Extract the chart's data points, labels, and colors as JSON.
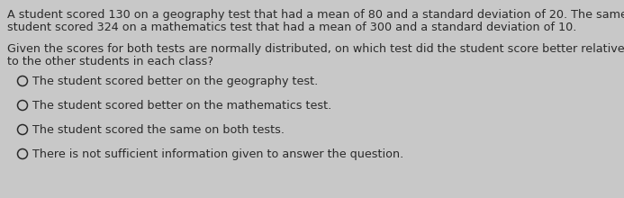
{
  "background_color": "#c8c8c8",
  "paragraph1_line1": "A student scored 130 on a geography test that had a mean of 80 and a standard deviation of 20. The same",
  "paragraph1_line2": "student scored 324 on a mathematics test that had a mean of 300 and a standard deviation of 10.",
  "paragraph2_line1": "Given the scores for both tests are normally distributed, on which test did the student score better relative",
  "paragraph2_line2": "to the other students in each class?",
  "options": [
    "The student scored better on the geography test.",
    "The student scored better on the mathematics test.",
    "The student scored the same on both tests.",
    "There is not sufficient information given to answer the question."
  ],
  "text_color": "#2a2a2a",
  "font_size": 9.2,
  "circle_color": "#2a2a2a"
}
